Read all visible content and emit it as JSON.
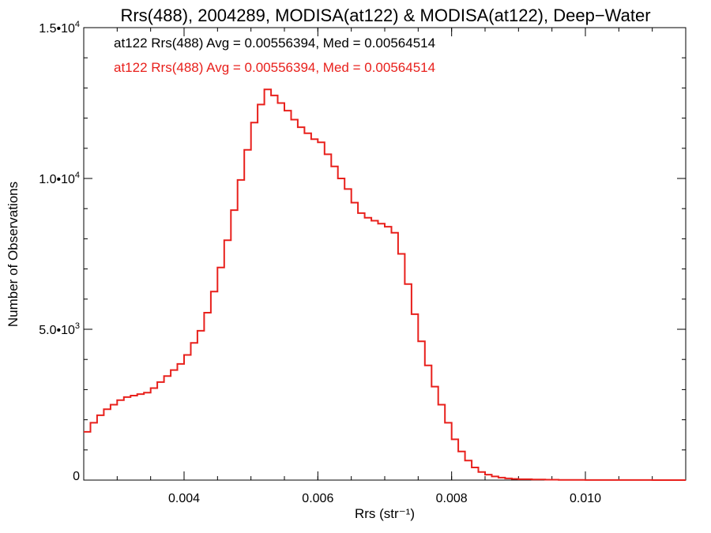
{
  "chart_data": {
    "type": "histogram-step",
    "title": "Rrs(488), 2004289, MODISA(at122) & MODISA(at122), Deep−Water",
    "xlabel": "Rrs (str⁻¹)",
    "ylabel": "Number of Observations",
    "xlim": [
      0.0025,
      0.0115
    ],
    "ylim": [
      0,
      15000
    ],
    "x_ticks": [
      {
        "value": 0.004,
        "label": "0.004"
      },
      {
        "value": 0.006,
        "label": "0.006"
      },
      {
        "value": 0.008,
        "label": "0.008"
      },
      {
        "value": 0.01,
        "label": "0.010"
      }
    ],
    "y_ticks": [
      {
        "value": 0,
        "mantissa": "0",
        "exp": ""
      },
      {
        "value": 5000,
        "mantissa": "5.0•10",
        "exp": "3"
      },
      {
        "value": 10000,
        "mantissa": "1.0•10",
        "exp": "4"
      },
      {
        "value": 15000,
        "mantissa": "1.5•10",
        "exp": "4"
      }
    ],
    "x_minor_step": 0.0005,
    "y_minor_step": 1000,
    "annotations": [
      {
        "text": "at122 Rrs(488) Avg = 0.00556394, Med = 0.00564514",
        "color": "#000000"
      },
      {
        "text": "at122 Rrs(488) Avg = 0.00556394, Med = 0.00564514",
        "color": "#e8201c"
      }
    ],
    "series": [
      {
        "color": "#e8201c",
        "x": [
          0.0025,
          0.0026,
          0.0027,
          0.0028,
          0.0029,
          0.003,
          0.0031,
          0.0032,
          0.0033,
          0.0034,
          0.0035,
          0.0036,
          0.0037,
          0.0038,
          0.0039,
          0.004,
          0.0041,
          0.0042,
          0.0043,
          0.0044,
          0.0045,
          0.0046,
          0.0047,
          0.0048,
          0.0049,
          0.005,
          0.0051,
          0.0052,
          0.0053,
          0.0054,
          0.0055,
          0.0056,
          0.0057,
          0.0058,
          0.0059,
          0.006,
          0.0061,
          0.0062,
          0.0063,
          0.0064,
          0.0065,
          0.0066,
          0.0067,
          0.0068,
          0.0069,
          0.007,
          0.0071,
          0.0072,
          0.0073,
          0.0074,
          0.0075,
          0.0076,
          0.0077,
          0.0078,
          0.0079,
          0.008,
          0.0081,
          0.0082,
          0.0083,
          0.0084,
          0.0085,
          0.0086,
          0.0087,
          0.0088,
          0.0089,
          0.009,
          0.0092,
          0.0094,
          0.0096,
          0.0098,
          0.01,
          0.0105,
          0.011,
          0.0115
        ],
        "values": [
          1600,
          1900,
          2150,
          2350,
          2500,
          2650,
          2750,
          2800,
          2850,
          2900,
          3050,
          3250,
          3450,
          3650,
          3850,
          4150,
          4550,
          4950,
          5550,
          6250,
          7050,
          7950,
          8950,
          9950,
          10950,
          11850,
          12450,
          12950,
          12750,
          12500,
          12250,
          11950,
          11700,
          11500,
          11300,
          11200,
          10800,
          10400,
          10000,
          9650,
          9200,
          8850,
          8700,
          8600,
          8500,
          8400,
          8200,
          7500,
          6500,
          5500,
          4600,
          3800,
          3100,
          2500,
          1900,
          1350,
          950,
          650,
          420,
          270,
          180,
          120,
          80,
          55,
          40,
          28,
          18,
          12,
          8,
          5,
          3,
          2,
          1,
          0
        ]
      }
    ]
  }
}
